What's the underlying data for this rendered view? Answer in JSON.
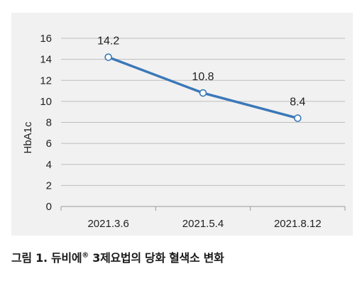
{
  "chart_data": {
    "type": "line",
    "title": "",
    "xlabel": "",
    "ylabel": "HbA1c",
    "categories": [
      "2021.3.6",
      "2021.5.4",
      "2021.8.12"
    ],
    "series": [
      {
        "values": [
          14.2,
          10.8,
          8.4
        ]
      }
    ],
    "data_labels": [
      "14.2",
      "10.8",
      "8.4"
    ],
    "yticks": [
      "0",
      "2",
      "4",
      "6",
      "8",
      "10",
      "12",
      "14",
      "16"
    ],
    "ylim": [
      0,
      16
    ],
    "grid": true,
    "line_color": "#3b78b8",
    "grid_color": "#bdbdbd"
  },
  "caption": {
    "prefix": "그림 1. 듀비에",
    "reg_mark": "®",
    "suffix": " 3제요법의 당화 혈색소 변화"
  }
}
